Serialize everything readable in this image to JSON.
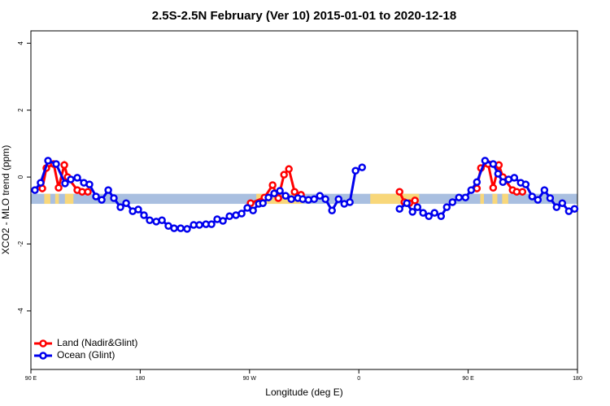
{
  "chart_data": {
    "type": "line",
    "title": "2.5S-2.5N February (Ver 10)   2015-01-01 to 2020-12-18",
    "x_label": "Longitude (deg E)",
    "y_label": "XCO2 - MLO trend (ppm)",
    "xlim": [
      90,
      540
    ],
    "ylim": [
      -5.75,
      4.37
    ],
    "xticks": [
      {
        "value": 90,
        "label": "90 E"
      },
      180,
      {
        "value": 270,
        "label": "90 W"
      },
      {
        "value": 360,
        "label": "0"
      },
      {
        "value": 450,
        "label": "90 E"
      },
      {
        "value": 540,
        "label": "180"
      }
    ],
    "yticks": [
      -4,
      -2,
      0,
      2,
      4
    ],
    "band": {
      "range": [
        -0.8,
        -0.5
      ],
      "color": "#a9bfe0",
      "highlight_color": "#f8d77a",
      "highlights": [
        [
          101,
          106
        ],
        [
          110,
          113
        ],
        [
          118,
          125
        ],
        [
          275.6,
          313.8
        ],
        [
          369.4,
          409.6
        ],
        [
          460,
          463
        ],
        [
          470,
          474
        ],
        [
          478,
          483
        ]
      ]
    },
    "legend_position": "bottomleft",
    "series": [
      {
        "name": "Land (Nadir&Glint)",
        "color": "#ff0000",
        "x": [
          99.4,
          102.7,
          108.8,
          112.8,
          117.5,
          120.2,
          128.2,
          132.2,
          136.9,
          null,
          270.9,
          282.3,
          289.0,
          293.7,
          298.4,
          302.4,
          307.1,
          312.4,
          null,
          393.5,
          397.5,
          401.6,
          406.2,
          null,
          457.2,
          460.5,
          466.5,
          470.6,
          475.3,
          478.6,
          486.6,
          490.0,
          494.7
        ],
        "values": [
          -0.34,
          0.27,
          0.39,
          -0.32,
          0.36,
          0.0,
          -0.39,
          -0.44,
          -0.44,
          null,
          -0.78,
          -0.61,
          -0.24,
          -0.63,
          0.07,
          0.24,
          -0.44,
          -0.53,
          null,
          -0.44,
          -0.75,
          -0.78,
          -0.7,
          null,
          -0.34,
          0.27,
          0.39,
          -0.32,
          0.36,
          0.0,
          -0.39,
          -0.44,
          -0.44
        ]
      },
      {
        "name": "Ocean (Glint)",
        "color": "#0000ee",
        "x": [
          93.3,
          98.0,
          104.1,
          110.8,
          118.1,
          122.8,
          128.2,
          133.6,
          138.2,
          143.6,
          148.3,
          153.7,
          158.3,
          163.7,
          168.4,
          173.8,
          178.4,
          183.1,
          187.8,
          193.2,
          197.9,
          203.2,
          207.9,
          213.3,
          218.6,
          224.0,
          228.7,
          234.1,
          238.7,
          243.4,
          248.1,
          253.5,
          258.8,
          263.5,
          268.2,
          272.9,
          277.6,
          281.0,
          285.6,
          290.3,
          295.0,
          299.7,
          304.4,
          309.8,
          313.8,
          318.5,
          323.2,
          327.9,
          332.5,
          337.9,
          343.3,
          348.0,
          352.6,
          357.3,
          362.7,
          null,
          393.5,
          399.5,
          404.2,
          408.3,
          412.9,
          417.6,
          422.3,
          427.7,
          432.4,
          437.1,
          442.4,
          447.8,
          452.5,
          457.2,
          463.9,
          470.6,
          474.6,
          478.6,
          483.3,
          488.0,
          493.3,
          497.4,
          502.7,
          507.4,
          512.8,
          517.5,
          522.8,
          527.5,
          532.9,
          537.6
        ],
        "values": [
          -0.39,
          -0.17,
          0.49,
          0.39,
          -0.19,
          -0.07,
          -0.02,
          -0.17,
          -0.22,
          -0.58,
          -0.68,
          -0.39,
          -0.63,
          -0.9,
          -0.78,
          -1.02,
          -0.97,
          -1.14,
          -1.29,
          -1.33,
          -1.29,
          -1.46,
          -1.53,
          -1.53,
          -1.55,
          -1.43,
          -1.43,
          -1.41,
          -1.41,
          -1.26,
          -1.31,
          -1.17,
          -1.14,
          -1.09,
          -0.92,
          -1.0,
          -0.8,
          -0.78,
          -0.61,
          -0.49,
          -0.41,
          -0.56,
          -0.66,
          -0.63,
          -0.66,
          -0.68,
          -0.66,
          -0.56,
          -0.66,
          -1.0,
          -0.66,
          -0.8,
          -0.75,
          0.19,
          0.29,
          null,
          -0.95,
          -0.78,
          -1.04,
          -0.9,
          -1.07,
          -1.17,
          -1.07,
          -1.17,
          -0.9,
          -0.75,
          -0.61,
          -0.61,
          -0.39,
          -0.15,
          0.49,
          0.39,
          0.1,
          -0.15,
          -0.07,
          -0.02,
          -0.17,
          -0.22,
          -0.58,
          -0.68,
          -0.39,
          -0.63,
          -0.9,
          -0.78,
          -1.02,
          -0.95
        ]
      }
    ]
  }
}
